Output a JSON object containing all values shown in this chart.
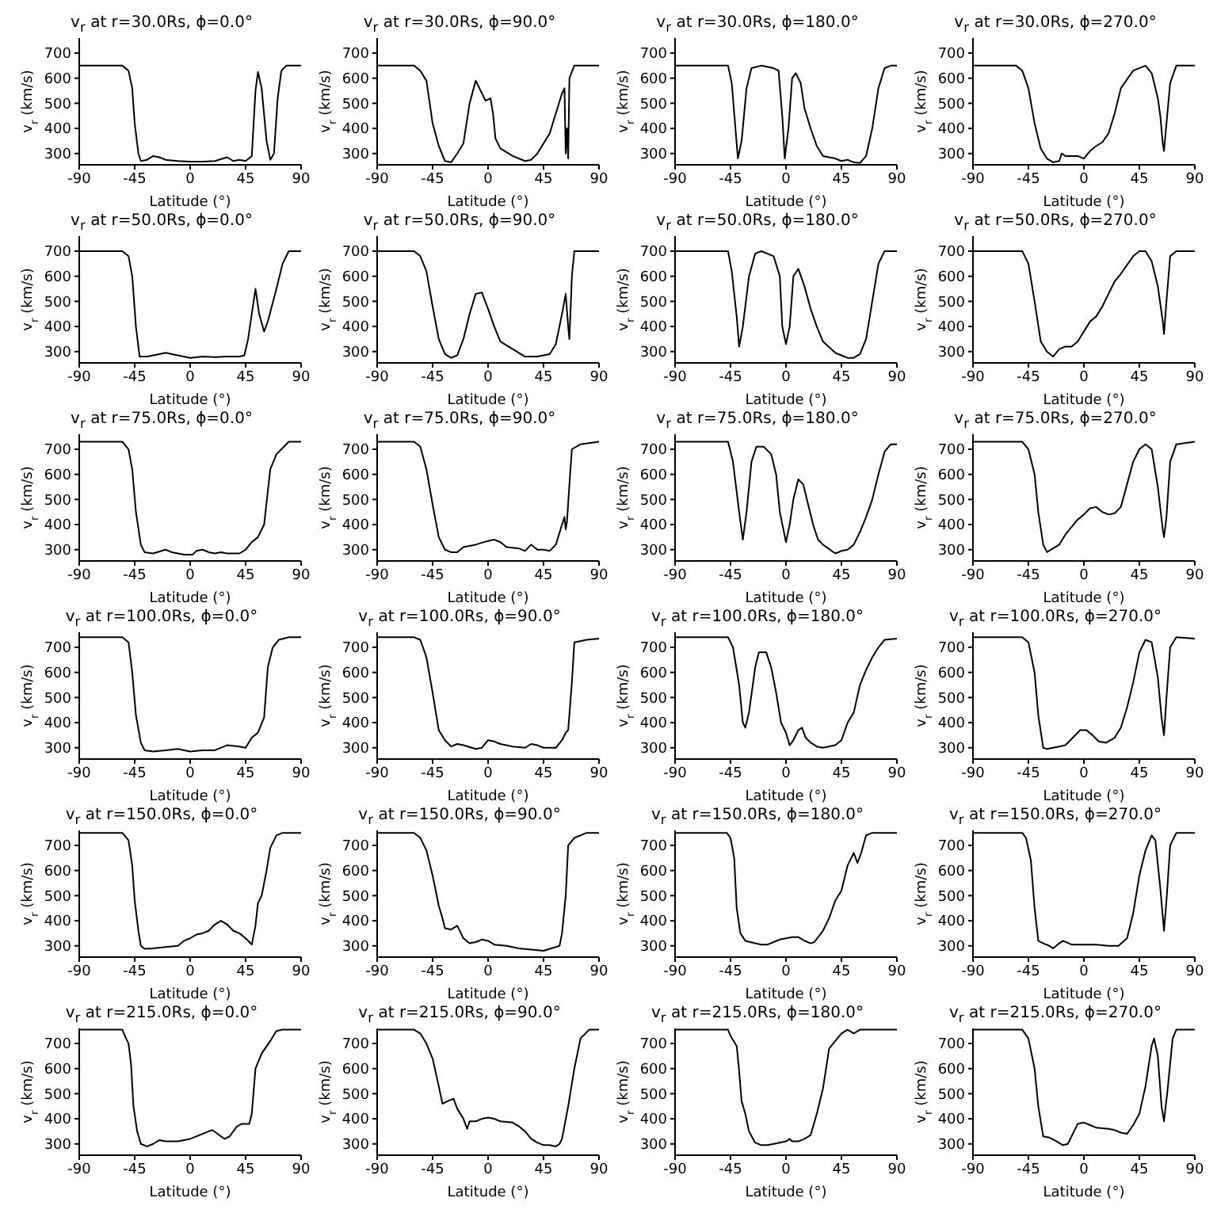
{
  "chart_data": [
    {
      "type": "line",
      "title": "v$_{r}$ at r=30.0Rs, ϕ=0.0°",
      "xlabel": "Latitude (°)",
      "ylabel": "v$_{r}$ (km/s)",
      "xlim": [
        -90,
        90
      ],
      "xticks": [
        -90,
        -45,
        0,
        45,
        90
      ],
      "ylim": [
        255,
        760
      ],
      "yticks": [
        300,
        400,
        500,
        600,
        700
      ],
      "series": [
        {
          "color": "#000000",
          "x": [
            -90,
            -55,
            -50,
            -47,
            -45,
            -42,
            -40,
            -35,
            -30,
            -25,
            -20,
            -10,
            0,
            10,
            20,
            30,
            35,
            40,
            45,
            50,
            53,
            55,
            58,
            62,
            65,
            68,
            71,
            74,
            78,
            90
          ],
          "values": [
            650,
            650,
            630,
            560,
            420,
            300,
            270,
            275,
            290,
            285,
            275,
            270,
            268,
            268,
            270,
            285,
            270,
            275,
            270,
            290,
            550,
            625,
            560,
            350,
            275,
            300,
            520,
            630,
            650,
            650
          ]
        }
      ]
    },
    {
      "type": "line",
      "title": "v$_{r}$ at r=30.0Rs, ϕ=90.0°",
      "xlabel": "Latitude (°)",
      "ylabel": "v$_{r}$ (km/s)",
      "xlim": [
        -90,
        90
      ],
      "xticks": [
        -90,
        -45,
        0,
        45,
        90
      ],
      "ylim": [
        255,
        760
      ],
      "yticks": [
        300,
        400,
        500,
        600,
        700
      ],
      "series": [
        {
          "color": "#000000",
          "x": [
            -90,
            -60,
            -55,
            -50,
            -45,
            -40,
            -35,
            -30,
            -25,
            -20,
            -15,
            -10,
            -5,
            -2,
            2,
            4,
            6,
            10,
            20,
            30,
            35,
            40,
            50,
            55,
            60,
            62,
            63,
            64,
            65,
            66,
            70,
            90
          ],
          "values": [
            650,
            650,
            630,
            590,
            420,
            330,
            270,
            265,
            300,
            340,
            500,
            590,
            540,
            510,
            520,
            460,
            360,
            320,
            290,
            270,
            275,
            300,
            380,
            460,
            540,
            560,
            300,
            400,
            280,
            600,
            650,
            650
          ]
        }
      ]
    },
    {
      "type": "line",
      "title": "v$_{r}$ at r=30.0Rs, ϕ=180.0°",
      "xlabel": "Latitude (°)",
      "ylabel": "v$_{r}$ (km/s)",
      "xlim": [
        -90,
        90
      ],
      "xticks": [
        -90,
        -45,
        0,
        45,
        90
      ],
      "ylim": [
        255,
        760
      ],
      "yticks": [
        300,
        400,
        500,
        600,
        700
      ],
      "series": [
        {
          "color": "#000000",
          "x": [
            -90,
            -47,
            -44,
            -41,
            -39,
            -36,
            -32,
            -28,
            -20,
            -10,
            -6,
            -3,
            -1,
            2,
            5,
            8,
            12,
            15,
            20,
            25,
            30,
            40,
            45,
            50,
            55,
            60,
            65,
            70,
            75,
            80,
            85,
            90
          ],
          "values": [
            650,
            650,
            580,
            400,
            280,
            350,
            560,
            640,
            650,
            640,
            630,
            450,
            280,
            400,
            600,
            620,
            580,
            480,
            400,
            330,
            290,
            280,
            270,
            275,
            265,
            262,
            290,
            400,
            560,
            640,
            650,
            650
          ]
        }
      ]
    },
    {
      "type": "line",
      "title": "v$_{r}$ at r=30.0Rs, ϕ=270.0°",
      "xlabel": "Latitude (°)",
      "ylabel": "v$_{r}$ (km/s)",
      "xlim": [
        -90,
        90
      ],
      "xticks": [
        -90,
        -45,
        0,
        45,
        90
      ],
      "ylim": [
        255,
        760
      ],
      "yticks": [
        300,
        400,
        500,
        600,
        700
      ],
      "series": [
        {
          "color": "#000000",
          "x": [
            -90,
            -55,
            -50,
            -45,
            -40,
            -35,
            -30,
            -25,
            -20,
            -18,
            -15,
            -5,
            0,
            5,
            10,
            15,
            20,
            25,
            30,
            40,
            50,
            55,
            60,
            62,
            64,
            65,
            67,
            70,
            75,
            90
          ],
          "values": [
            650,
            650,
            630,
            560,
            420,
            320,
            280,
            265,
            270,
            300,
            290,
            290,
            280,
            310,
            330,
            345,
            380,
            460,
            560,
            630,
            650,
            620,
            520,
            450,
            340,
            310,
            420,
            580,
            650,
            650
          ]
        }
      ]
    },
    {
      "type": "line",
      "title": "v$_{r}$ at r=50.0Rs, ϕ=0.0°",
      "xlabel": "Latitude (°)",
      "ylabel": "v$_{r}$ (km/s)",
      "xlim": [
        -90,
        90
      ],
      "xticks": [
        -90,
        -45,
        0,
        45,
        90
      ],
      "ylim": [
        255,
        760
      ],
      "yticks": [
        300,
        400,
        500,
        600,
        700
      ],
      "series": [
        {
          "color": "#000000",
          "x": [
            -90,
            -55,
            -50,
            -47,
            -44,
            -41,
            -35,
            -25,
            -20,
            -10,
            0,
            10,
            20,
            30,
            40,
            44,
            47,
            50,
            53,
            56,
            60,
            63,
            70,
            75,
            80,
            90
          ],
          "values": [
            700,
            700,
            680,
            600,
            400,
            280,
            280,
            290,
            295,
            285,
            275,
            280,
            278,
            280,
            280,
            285,
            350,
            450,
            550,
            450,
            380,
            420,
            550,
            650,
            700,
            700
          ]
        }
      ]
    },
    {
      "type": "line",
      "title": "v$_{r}$ at r=50.0Rs, ϕ=90.0°",
      "xlabel": "Latitude (°)",
      "ylabel": "v$_{r}$ (km/s)",
      "xlim": [
        -90,
        90
      ],
      "xticks": [
        -90,
        -45,
        0,
        45,
        90
      ],
      "ylim": [
        255,
        760
      ],
      "yticks": [
        300,
        400,
        500,
        600,
        700
      ],
      "series": [
        {
          "color": "#000000",
          "x": [
            -90,
            -60,
            -55,
            -50,
            -45,
            -40,
            -35,
            -30,
            -25,
            -20,
            -15,
            -10,
            -5,
            0,
            5,
            10,
            20,
            30,
            40,
            50,
            55,
            60,
            63,
            65,
            66,
            68,
            70,
            90
          ],
          "values": [
            700,
            700,
            680,
            620,
            480,
            350,
            290,
            275,
            285,
            350,
            450,
            530,
            535,
            470,
            400,
            340,
            310,
            280,
            280,
            290,
            330,
            450,
            530,
            400,
            350,
            600,
            700,
            700
          ]
        }
      ]
    },
    {
      "type": "line",
      "title": "v$_{r}$ at r=50.0Rs, ϕ=180.0°",
      "xlabel": "Latitude (°)",
      "ylabel": "v$_{r}$ (km/s)",
      "xlim": [
        -90,
        90
      ],
      "xticks": [
        -90,
        -45,
        0,
        45,
        90
      ],
      "ylim": [
        255,
        760
      ],
      "yticks": [
        300,
        400,
        500,
        600,
        700
      ],
      "series": [
        {
          "color": "#000000",
          "x": [
            -90,
            -47,
            -44,
            -40,
            -38,
            -35,
            -30,
            -25,
            -20,
            -10,
            -5,
            -3,
            0,
            3,
            6,
            10,
            15,
            20,
            25,
            30,
            40,
            45,
            50,
            55,
            60,
            65,
            70,
            75,
            80,
            90
          ],
          "values": [
            700,
            700,
            620,
            440,
            320,
            400,
            600,
            690,
            700,
            680,
            600,
            400,
            330,
            400,
            600,
            630,
            560,
            470,
            400,
            340,
            295,
            285,
            275,
            275,
            290,
            350,
            500,
            650,
            700,
            700
          ]
        }
      ]
    },
    {
      "type": "line",
      "title": "v$_{r}$ at r=50.0Rs, ϕ=270.0°",
      "xlabel": "Latitude (°)",
      "ylabel": "v$_{r}$ (km/s)",
      "xlim": [
        -90,
        90
      ],
      "xticks": [
        -90,
        -45,
        0,
        45,
        90
      ],
      "ylim": [
        255,
        760
      ],
      "yticks": [
        300,
        400,
        500,
        600,
        700
      ],
      "series": [
        {
          "color": "#000000",
          "x": [
            -90,
            -50,
            -45,
            -40,
            -35,
            -30,
            -25,
            -20,
            -15,
            -10,
            -5,
            0,
            5,
            10,
            15,
            20,
            25,
            30,
            40,
            45,
            50,
            55,
            60,
            64,
            65,
            67,
            70,
            75,
            90
          ],
          "values": [
            700,
            700,
            650,
            500,
            340,
            300,
            280,
            310,
            320,
            320,
            340,
            380,
            420,
            440,
            480,
            530,
            580,
            610,
            680,
            700,
            700,
            660,
            560,
            420,
            370,
            500,
            680,
            700,
            700
          ]
        }
      ]
    },
    {
      "type": "line",
      "title": "v$_{r}$ at r=75.0Rs, ϕ=0.0°",
      "xlabel": "Latitude (°)",
      "ylabel": "v$_{r}$ (km/s)",
      "xlim": [
        -90,
        90
      ],
      "xticks": [
        -90,
        -45,
        0,
        45,
        90
      ],
      "ylim": [
        255,
        760
      ],
      "yticks": [
        300,
        400,
        500,
        600,
        700
      ],
      "series": [
        {
          "color": "#000000",
          "x": [
            -90,
            -55,
            -50,
            -47,
            -44,
            -40,
            -37,
            -30,
            -20,
            -15,
            -5,
            2,
            5,
            10,
            15,
            20,
            25,
            30,
            40,
            45,
            50,
            55,
            60,
            65,
            70,
            80,
            90
          ],
          "values": [
            730,
            730,
            700,
            620,
            450,
            320,
            290,
            285,
            300,
            290,
            280,
            280,
            295,
            300,
            290,
            285,
            290,
            285,
            285,
            300,
            330,
            350,
            400,
            620,
            680,
            730,
            730
          ]
        }
      ]
    },
    {
      "type": "line",
      "title": "v$_{r}$ at r=75.0Rs, ϕ=90.0°",
      "xlabel": "Latitude (°)",
      "ylabel": "v$_{r}$ (km/s)",
      "xlim": [
        -90,
        90
      ],
      "xticks": [
        -90,
        -45,
        0,
        45,
        90
      ],
      "ylim": [
        255,
        760
      ],
      "yticks": [
        300,
        400,
        500,
        600,
        700
      ],
      "series": [
        {
          "color": "#000000",
          "x": [
            -90,
            -60,
            -55,
            -50,
            -45,
            -40,
            -35,
            -30,
            -25,
            -20,
            -10,
            0,
            5,
            10,
            15,
            25,
            30,
            35,
            40,
            45,
            50,
            55,
            60,
            62,
            63,
            64,
            66,
            68,
            75,
            90
          ],
          "values": [
            730,
            730,
            710,
            620,
            480,
            350,
            300,
            290,
            290,
            310,
            320,
            335,
            340,
            330,
            310,
            305,
            295,
            320,
            300,
            300,
            295,
            320,
            400,
            430,
            380,
            410,
            560,
            700,
            720,
            730
          ]
        }
      ]
    },
    {
      "type": "line",
      "title": "v$_{r}$ at r=75.0Rs, ϕ=180.0°",
      "xlabel": "Latitude (°)",
      "ylabel": "v$_{r}$ (km/s)",
      "xlim": [
        -90,
        90
      ],
      "xticks": [
        -90,
        -45,
        0,
        45,
        90
      ],
      "ylim": [
        255,
        760
      ],
      "yticks": [
        300,
        400,
        500,
        600,
        700
      ],
      "series": [
        {
          "color": "#000000",
          "x": [
            -90,
            -47,
            -43,
            -38,
            -35,
            -32,
            -28,
            -24,
            -18,
            -12,
            -8,
            -5,
            0,
            3,
            6,
            10,
            14,
            18,
            22,
            26,
            30,
            40,
            45,
            50,
            55,
            60,
            65,
            70,
            75,
            80,
            85,
            90
          ],
          "values": [
            730,
            730,
            650,
            450,
            340,
            450,
            650,
            710,
            710,
            680,
            600,
            450,
            330,
            400,
            500,
            580,
            560,
            480,
            400,
            340,
            320,
            285,
            295,
            300,
            320,
            370,
            430,
            500,
            600,
            690,
            720,
            720
          ]
        }
      ]
    },
    {
      "type": "line",
      "title": "v$_{r}$ at r=75.0Rs, ϕ=270.0°",
      "xlabel": "Latitude (°)",
      "ylabel": "v$_{r}$ (km/s)",
      "xlim": [
        -90,
        90
      ],
      "xticks": [
        -90,
        -45,
        0,
        45,
        90
      ],
      "ylim": [
        255,
        760
      ],
      "yticks": [
        300,
        400,
        500,
        600,
        700
      ],
      "series": [
        {
          "color": "#000000",
          "x": [
            -90,
            -50,
            -45,
            -40,
            -37,
            -33,
            -30,
            -25,
            -20,
            -15,
            -10,
            -5,
            0,
            5,
            10,
            15,
            20,
            25,
            30,
            35,
            40,
            45,
            50,
            55,
            60,
            64,
            65,
            67,
            70,
            75,
            90
          ],
          "values": [
            730,
            730,
            700,
            600,
            450,
            320,
            290,
            305,
            320,
            360,
            390,
            420,
            440,
            465,
            470,
            450,
            440,
            445,
            470,
            560,
            650,
            700,
            720,
            700,
            550,
            380,
            350,
            430,
            650,
            720,
            730
          ]
        }
      ]
    },
    {
      "type": "line",
      "title": "v$_{r}$ at r=100.0Rs, ϕ=0.0°",
      "xlabel": "Latitude (°)",
      "ylabel": "v$_{r}$ (km/s)",
      "xlim": [
        -90,
        90
      ],
      "xticks": [
        -90,
        -45,
        0,
        45,
        90
      ],
      "ylim": [
        255,
        760
      ],
      "yticks": [
        300,
        400,
        500,
        600,
        700
      ],
      "series": [
        {
          "color": "#000000",
          "x": [
            -90,
            -55,
            -50,
            -47,
            -44,
            -40,
            -37,
            -30,
            -20,
            -10,
            0,
            10,
            20,
            30,
            40,
            45,
            50,
            55,
            60,
            63,
            67,
            72,
            80,
            90
          ],
          "values": [
            740,
            740,
            720,
            600,
            430,
            320,
            290,
            285,
            290,
            295,
            285,
            290,
            290,
            310,
            305,
            300,
            340,
            360,
            420,
            620,
            700,
            730,
            740,
            740
          ]
        }
      ]
    },
    {
      "type": "line",
      "title": "v$_{r}$ at r=100.0Rs, ϕ=90.0°",
      "xlabel": "Latitude (°)",
      "ylabel": "v$_{r}$ (km/s)",
      "xlim": [
        -90,
        90
      ],
      "xticks": [
        -90,
        -45,
        0,
        45,
        90
      ],
      "ylim": [
        255,
        760
      ],
      "yticks": [
        300,
        400,
        500,
        600,
        700
      ],
      "series": [
        {
          "color": "#000000",
          "x": [
            -90,
            -60,
            -55,
            -50,
            -45,
            -40,
            -35,
            -30,
            -25,
            -20,
            -10,
            -5,
            0,
            5,
            10,
            20,
            30,
            35,
            40,
            45,
            55,
            60,
            63,
            65,
            68,
            70,
            80,
            90
          ],
          "values": [
            740,
            740,
            730,
            660,
            520,
            370,
            330,
            305,
            315,
            310,
            295,
            300,
            330,
            325,
            315,
            305,
            300,
            315,
            310,
            300,
            300,
            330,
            360,
            370,
            560,
            720,
            730,
            735
          ]
        }
      ]
    },
    {
      "type": "line",
      "title": "v$_{r}$ at r=100.0Rs, ϕ=180.0°",
      "xlabel": "Latitude (°)",
      "ylabel": "v$_{r}$ (km/s)",
      "xlim": [
        -90,
        90
      ],
      "xticks": [
        -90,
        -45,
        0,
        45,
        90
      ],
      "ylim": [
        255,
        760
      ],
      "yticks": [
        300,
        400,
        500,
        600,
        700
      ],
      "series": [
        {
          "color": "#000000",
          "x": [
            -90,
            -47,
            -43,
            -38,
            -35,
            -33,
            -30,
            -25,
            -22,
            -16,
            -12,
            -8,
            -4,
            0,
            3,
            6,
            10,
            13,
            16,
            20,
            25,
            30,
            40,
            45,
            50,
            55,
            60,
            65,
            70,
            75,
            80,
            90
          ],
          "values": [
            740,
            740,
            700,
            550,
            400,
            380,
            440,
            620,
            680,
            680,
            620,
            520,
            400,
            360,
            310,
            330,
            370,
            380,
            340,
            320,
            305,
            300,
            310,
            330,
            400,
            440,
            550,
            610,
            660,
            700,
            730,
            735
          ]
        }
      ]
    },
    {
      "type": "line",
      "title": "v$_{r}$ at r=100.0Rs, ϕ=270.0°",
      "xlabel": "Latitude (°)",
      "ylabel": "v$_{r}$ (km/s)",
      "xlim": [
        -90,
        90
      ],
      "xticks": [
        -90,
        -45,
        0,
        45,
        90
      ],
      "ylim": [
        255,
        760
      ],
      "yticks": [
        300,
        400,
        500,
        600,
        700
      ],
      "series": [
        {
          "color": "#000000",
          "x": [
            -90,
            -50,
            -45,
            -40,
            -37,
            -33,
            -30,
            -20,
            -15,
            -8,
            -3,
            2,
            7,
            12,
            18,
            25,
            30,
            35,
            40,
            45,
            50,
            55,
            60,
            63,
            65,
            67,
            70,
            75,
            90
          ],
          "values": [
            740,
            740,
            720,
            600,
            430,
            300,
            295,
            305,
            310,
            345,
            370,
            370,
            350,
            325,
            320,
            340,
            380,
            460,
            560,
            680,
            730,
            720,
            580,
            420,
            350,
            500,
            700,
            740,
            735
          ]
        }
      ]
    },
    {
      "type": "line",
      "title": "v$_{r}$ at r=150.0Rs, ϕ=0.0°",
      "xlabel": "Latitude (°)",
      "ylabel": "v$_{r}$ (km/s)",
      "xlim": [
        -90,
        90
      ],
      "xticks": [
        -90,
        -45,
        0,
        45,
        90
      ],
      "ylim": [
        255,
        760
      ],
      "yticks": [
        300,
        400,
        500,
        600,
        700
      ],
      "series": [
        {
          "color": "#000000",
          "x": [
            -90,
            -55,
            -50,
            -47,
            -45,
            -42,
            -40,
            -37,
            -30,
            -20,
            -10,
            -5,
            0,
            5,
            10,
            15,
            20,
            25,
            30,
            35,
            40,
            45,
            50,
            53,
            55,
            58,
            62,
            65,
            70,
            75,
            90
          ],
          "values": [
            750,
            750,
            720,
            620,
            480,
            360,
            300,
            288,
            290,
            295,
            300,
            320,
            330,
            345,
            350,
            360,
            385,
            400,
            385,
            360,
            350,
            330,
            305,
            380,
            470,
            500,
            600,
            690,
            740,
            750,
            750
          ]
        }
      ]
    },
    {
      "type": "line",
      "title": "v$_{r}$ at r=150.0Rs, ϕ=90.0°",
      "xlabel": "Latitude (°)",
      "ylabel": "v$_{r}$ (km/s)",
      "xlim": [
        -90,
        90
      ],
      "xticks": [
        -90,
        -45,
        0,
        45,
        90
      ],
      "ylim": [
        255,
        760
      ],
      "yticks": [
        300,
        400,
        500,
        600,
        700
      ],
      "series": [
        {
          "color": "#000000",
          "x": [
            -90,
            -60,
            -55,
            -50,
            -45,
            -40,
            -37,
            -35,
            -30,
            -25,
            -20,
            -15,
            -10,
            -5,
            0,
            5,
            15,
            25,
            35,
            45,
            55,
            58,
            60,
            63,
            65,
            70,
            80,
            90
          ],
          "values": [
            750,
            750,
            730,
            680,
            580,
            460,
            410,
            370,
            365,
            380,
            330,
            310,
            315,
            325,
            320,
            305,
            300,
            290,
            285,
            280,
            295,
            300,
            350,
            500,
            700,
            730,
            750,
            750
          ]
        }
      ]
    },
    {
      "type": "line",
      "title": "v$_{r}$ at r=150.0Rs, ϕ=180.0°",
      "xlabel": "Latitude (°)",
      "ylabel": "v$_{r}$ (km/s)",
      "xlim": [
        -90,
        90
      ],
      "xticks": [
        -90,
        -45,
        0,
        45,
        90
      ],
      "ylim": [
        255,
        760
      ],
      "yticks": [
        300,
        400,
        500,
        600,
        700
      ],
      "series": [
        {
          "color": "#000000",
          "x": [
            -90,
            -48,
            -45,
            -42,
            -40,
            -37,
            -33,
            -25,
            -20,
            -15,
            -10,
            -5,
            0,
            5,
            10,
            15,
            20,
            23,
            30,
            35,
            40,
            45,
            50,
            55,
            58,
            61,
            65,
            70,
            90
          ],
          "values": [
            750,
            750,
            730,
            650,
            450,
            350,
            320,
            310,
            305,
            305,
            315,
            325,
            330,
            335,
            335,
            320,
            310,
            315,
            360,
            410,
            480,
            520,
            620,
            670,
            630,
            670,
            740,
            750,
            750
          ]
        }
      ]
    },
    {
      "type": "line",
      "title": "v$_{r}$ at r=150.0Rs, ϕ=270.0°",
      "xlabel": "Latitude (°)",
      "ylabel": "v$_{r}$ (km/s)",
      "xlim": [
        -90,
        90
      ],
      "xticks": [
        -90,
        -45,
        0,
        45,
        90
      ],
      "ylim": [
        255,
        760
      ],
      "yticks": [
        300,
        400,
        500,
        600,
        700
      ],
      "series": [
        {
          "color": "#000000",
          "x": [
            -90,
            -50,
            -47,
            -43,
            -40,
            -37,
            -33,
            -28,
            -25,
            -20,
            -17,
            -10,
            0,
            10,
            20,
            28,
            35,
            40,
            45,
            50,
            55,
            58,
            62,
            65,
            67,
            70,
            75,
            90
          ],
          "values": [
            750,
            750,
            730,
            640,
            450,
            320,
            310,
            300,
            290,
            310,
            320,
            305,
            305,
            305,
            300,
            300,
            330,
            430,
            580,
            680,
            740,
            720,
            530,
            360,
            480,
            700,
            750,
            750
          ]
        }
      ]
    },
    {
      "type": "line",
      "title": "v$_{r}$ at r=215.0Rs, ϕ=0.0°",
      "xlabel": "Latitude (°)",
      "ylabel": "v$_{r}$ (km/s)",
      "xlim": [
        -90,
        90
      ],
      "xticks": [
        -90,
        -45,
        0,
        45,
        90
      ],
      "ylim": [
        255,
        760
      ],
      "yticks": [
        300,
        400,
        500,
        600,
        700
      ],
      "series": [
        {
          "color": "#000000",
          "x": [
            -90,
            -55,
            -52,
            -50,
            -48,
            -46,
            -43,
            -40,
            -35,
            -30,
            -25,
            -20,
            -10,
            0,
            10,
            15,
            18,
            25,
            28,
            32,
            38,
            42,
            48,
            50,
            53,
            58,
            65,
            70,
            75,
            90
          ],
          "values": [
            755,
            755,
            720,
            700,
            620,
            450,
            350,
            300,
            290,
            300,
            315,
            310,
            310,
            320,
            340,
            350,
            355,
            330,
            320,
            330,
            370,
            380,
            380,
            420,
            600,
            660,
            710,
            750,
            755,
            755
          ]
        }
      ]
    },
    {
      "type": "line",
      "title": "v$_{r}$ at r=215.0Rs, ϕ=90.0°",
      "xlabel": "Latitude (°)",
      "ylabel": "v$_{r}$ (km/s)",
      "xlim": [
        -90,
        90
      ],
      "xticks": [
        -90,
        -45,
        0,
        45,
        90
      ],
      "ylim": [
        255,
        760
      ],
      "yticks": [
        300,
        400,
        500,
        600,
        700
      ],
      "series": [
        {
          "color": "#000000",
          "x": [
            -90,
            -60,
            -55,
            -50,
            -45,
            -40,
            -37,
            -33,
            -28,
            -25,
            -20,
            -17,
            -15,
            -10,
            -5,
            0,
            5,
            10,
            20,
            25,
            30,
            35,
            40,
            45,
            50,
            55,
            58,
            60,
            65,
            70,
            75,
            82,
            90
          ],
          "values": [
            755,
            755,
            740,
            700,
            640,
            530,
            460,
            470,
            480,
            440,
            400,
            360,
            390,
            390,
            400,
            405,
            400,
            390,
            385,
            370,
            350,
            320,
            305,
            295,
            295,
            290,
            300,
            320,
            450,
            600,
            720,
            755,
            755
          ]
        }
      ]
    },
    {
      "type": "line",
      "title": "v$_{r}$ at r=215.0Rs, ϕ=180.0°",
      "xlabel": "Latitude (°)",
      "ylabel": "v$_{r}$ (km/s)",
      "xlim": [
        -90,
        90
      ],
      "xticks": [
        -90,
        -45,
        0,
        45,
        90
      ],
      "ylim": [
        255,
        760
      ],
      "yticks": [
        300,
        400,
        500,
        600,
        700
      ],
      "series": [
        {
          "color": "#000000",
          "x": [
            -90,
            -47,
            -45,
            -40,
            -38,
            -36,
            -33,
            -30,
            -25,
            -20,
            -15,
            -10,
            0,
            3,
            5,
            10,
            15,
            20,
            25,
            30,
            35,
            40,
            45,
            50,
            55,
            60,
            65,
            90
          ],
          "values": [
            755,
            755,
            730,
            690,
            590,
            470,
            420,
            350,
            305,
            295,
            295,
            300,
            310,
            320,
            310,
            310,
            320,
            335,
            420,
            520,
            680,
            710,
            740,
            755,
            740,
            755,
            755,
            755
          ]
        }
      ]
    },
    {
      "type": "line",
      "title": "v$_{r}$ at r=215.0Rs, ϕ=270.0°",
      "xlabel": "Latitude (°)",
      "ylabel": "v$_{r}$ (km/s)",
      "xlim": [
        -90,
        90
      ],
      "xticks": [
        -90,
        -45,
        0,
        45,
        90
      ],
      "ylim": [
        255,
        760
      ],
      "yticks": [
        300,
        400,
        500,
        600,
        700
      ],
      "series": [
        {
          "color": "#000000",
          "x": [
            -90,
            -50,
            -45,
            -40,
            -37,
            -33,
            -28,
            -22,
            -17,
            -13,
            -8,
            -5,
            0,
            5,
            10,
            20,
            25,
            30,
            35,
            40,
            45,
            50,
            55,
            57,
            60,
            63,
            65,
            68,
            72,
            75,
            90
          ],
          "values": [
            755,
            755,
            720,
            600,
            450,
            330,
            325,
            310,
            295,
            300,
            350,
            380,
            385,
            375,
            365,
            360,
            355,
            345,
            340,
            375,
            420,
            530,
            690,
            720,
            650,
            450,
            390,
            520,
            720,
            755,
            755
          ]
        }
      ]
    }
  ]
}
